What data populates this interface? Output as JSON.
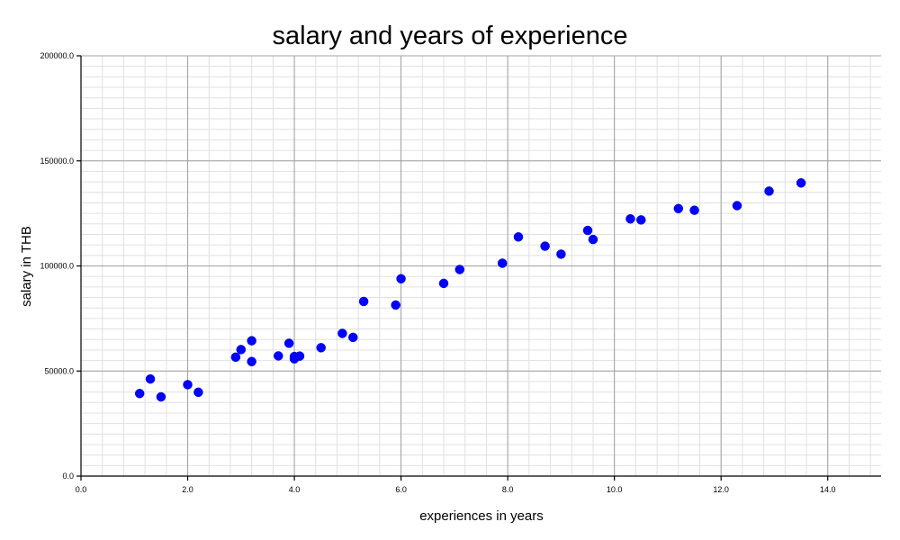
{
  "chart_data": {
    "type": "scatter",
    "title": "salary and years of experience",
    "xlabel": "experiences in years",
    "ylabel": "salary in THB",
    "xlim": [
      0,
      15
    ],
    "ylim": [
      0,
      200000
    ],
    "x_ticks": [
      0,
      2,
      4,
      6,
      8,
      10,
      12,
      14
    ],
    "x_tick_labels": [
      "0.0",
      "2.0",
      "4.0",
      "6.0",
      "8.0",
      "10.0",
      "12.0",
      "14.0"
    ],
    "y_ticks": [
      0,
      50000,
      100000,
      150000,
      200000
    ],
    "y_tick_labels": [
      "0.0",
      "50000.0",
      "100000.0",
      "150000.0",
      "200000.0"
    ],
    "grid": true,
    "color": "#0000ff",
    "points": [
      {
        "x": 1.1,
        "y": 39300
      },
      {
        "x": 1.3,
        "y": 46200
      },
      {
        "x": 1.5,
        "y": 37700
      },
      {
        "x": 2.0,
        "y": 43500
      },
      {
        "x": 2.2,
        "y": 39900
      },
      {
        "x": 2.9,
        "y": 56600
      },
      {
        "x": 3.0,
        "y": 60200
      },
      {
        "x": 3.2,
        "y": 54500
      },
      {
        "x": 3.2,
        "y": 64400
      },
      {
        "x": 3.7,
        "y": 57200
      },
      {
        "x": 3.9,
        "y": 63200
      },
      {
        "x": 4.0,
        "y": 55800
      },
      {
        "x": 4.0,
        "y": 56900
      },
      {
        "x": 4.1,
        "y": 57100
      },
      {
        "x": 4.5,
        "y": 61100
      },
      {
        "x": 4.9,
        "y": 67900
      },
      {
        "x": 5.1,
        "y": 66000
      },
      {
        "x": 5.3,
        "y": 83100
      },
      {
        "x": 5.9,
        "y": 81400
      },
      {
        "x": 6.0,
        "y": 93900
      },
      {
        "x": 6.8,
        "y": 91700
      },
      {
        "x": 7.1,
        "y": 98300
      },
      {
        "x": 7.9,
        "y": 101300
      },
      {
        "x": 8.2,
        "y": 113800
      },
      {
        "x": 8.7,
        "y": 109400
      },
      {
        "x": 9.0,
        "y": 105600
      },
      {
        "x": 9.5,
        "y": 116900
      },
      {
        "x": 9.6,
        "y": 112600
      },
      {
        "x": 10.3,
        "y": 122400
      },
      {
        "x": 10.5,
        "y": 121900
      },
      {
        "x": 11.2,
        "y": 127300
      },
      {
        "x": 11.5,
        "y": 126500
      },
      {
        "x": 12.3,
        "y": 128700
      },
      {
        "x": 12.9,
        "y": 135600
      },
      {
        "x": 13.5,
        "y": 139500
      }
    ]
  }
}
